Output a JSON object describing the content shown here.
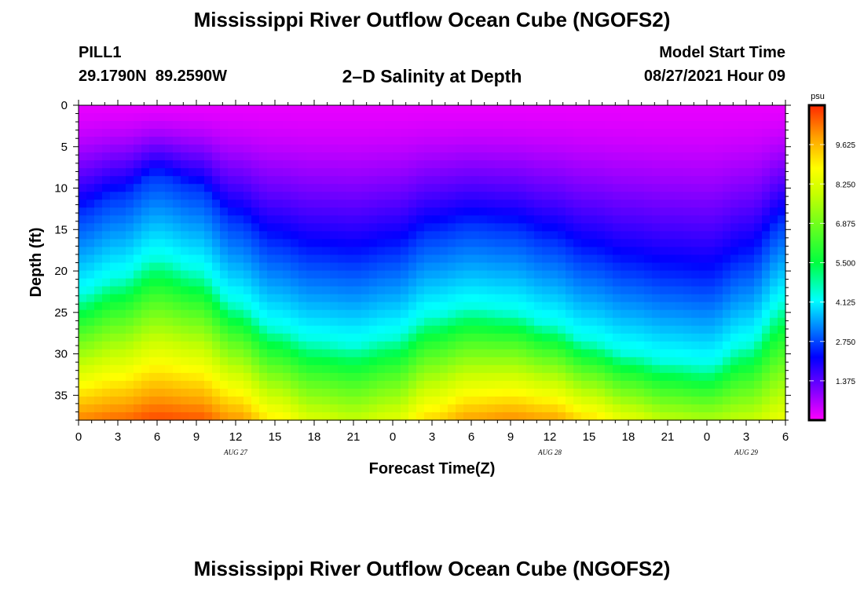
{
  "header": {
    "title": "Mississippi River Outflow Ocean Cube (NGOFS2)",
    "station": "PILL1",
    "coordinates": "29.1790N  89.2590W",
    "plot_title": "2–D Salinity at Depth",
    "model_start_label": "Model Start Time",
    "model_start_value": "08/27/2021 Hour 09"
  },
  "footer": {
    "title": "Mississippi River Outflow Ocean Cube (NGOFS2)"
  },
  "chart_data": {
    "type": "heatmap",
    "title": "2–D Salinity at Depth",
    "xlabel": "Forecast Time(Z)",
    "ylabel": "Depth (ft)",
    "x_range_hours": [
      0,
      54
    ],
    "ylim": [
      0,
      38
    ],
    "y_inverted": true,
    "x_tick_labels": [
      "0",
      "3",
      "6",
      "9",
      "12",
      "15",
      "18",
      "21",
      "0",
      "3",
      "6",
      "9",
      "12",
      "15",
      "18",
      "21",
      "0",
      "3",
      "6"
    ],
    "y_ticks": [
      0,
      5,
      10,
      15,
      20,
      25,
      30,
      35
    ],
    "date_labels": [
      {
        "hour": 12,
        "label": "AUG  27"
      },
      {
        "hour": 36,
        "label": "AUG  28"
      },
      {
        "hour": 51,
        "label": "AUG  29"
      }
    ],
    "colorbar": {
      "unit": "psu",
      "range": [
        0,
        11
      ],
      "ticks": [
        "9.625",
        "8.250",
        "6.875",
        "5.500",
        "4.125",
        "2.750",
        "1.375"
      ],
      "tick_values": [
        9.625,
        8.25,
        6.875,
        5.5,
        4.125,
        2.75,
        1.375
      ],
      "colors": [
        "#ff00ff",
        "#7a00ff",
        "#0000ff",
        "#00a8ff",
        "#00ffff",
        "#00ff40",
        "#c8ff00",
        "#ffff00",
        "#ffa000",
        "#ff2800"
      ],
      "color_stops": [
        0,
        0.1,
        0.2,
        0.32,
        0.38,
        0.5,
        0.72,
        0.8,
        0.9,
        1
      ]
    },
    "salinity_profile": {
      "description_hours": [
        0,
        3,
        6,
        9,
        12,
        15,
        18,
        21,
        24,
        27,
        30,
        33,
        36,
        39,
        42,
        45,
        48,
        51,
        54
      ],
      "halocline_depth_ft": [
        23,
        21,
        18.5,
        20,
        24,
        27,
        28.5,
        29,
        28,
        25.5,
        24.5,
        25,
        26.5,
        28.5,
        30,
        31,
        31.5,
        29,
        24
      ],
      "bottom_salinity_psu": [
        10.2,
        10.4,
        10.7,
        10.6,
        10.0,
        9.0,
        8.2,
        7.9,
        8.3,
        9.3,
        9.9,
        10.1,
        9.9,
        9.2,
        8.4,
        7.8,
        7.6,
        7.9,
        8.5
      ],
      "surface_salinity_psu": 0.2
    }
  }
}
